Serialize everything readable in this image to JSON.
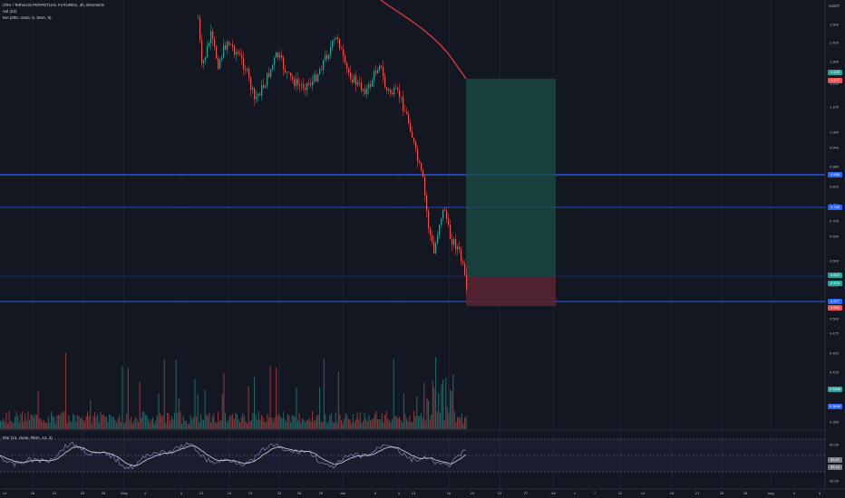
{
  "legend": {
    "title": "CRV / TetherUS PERPETUAL FUTURES, 4h, BINANCE",
    "vol": "Vol (22)",
    "ma": "MA (200, close, 0, SMA, 9)",
    "rsi": "RSI (14, close, RMA, 14, 3)"
  },
  "currency": "USDT",
  "colors": {
    "background": "#131722",
    "up": "#26a69a",
    "down": "#ef5350",
    "ma": "#e53945",
    "level": "#2962ff",
    "rsi": "#d1d4dc",
    "rsi_band": "#7e57c2"
  },
  "price_axis": {
    "ticks": [
      "1.500",
      "1.400",
      "1.300",
      "1.200",
      "1.100",
      "1.000",
      "0.940",
      "0.880",
      "0.820",
      "0.760",
      "0.700",
      "0.650",
      "0.600",
      "0.550",
      "0.500",
      "0.475",
      "0.450",
      "0.425",
      "0.400",
      "0.375",
      "0.350"
    ],
    "tags": [
      {
        "text": "1.225",
        "color": "#26a69a"
      },
      {
        "text": "1.177",
        "color": "#ef5350"
      },
      {
        "text": "0.856",
        "color": "#2962ff"
      },
      {
        "text": "0.748",
        "color": "#2962ff"
      },
      {
        "text": "0.602",
        "color": "#26a69a"
      },
      {
        "text": "0.578",
        "color": "#26a69a"
      },
      {
        "text": "0.577",
        "color": "#2962ff"
      },
      {
        "text": "0.554",
        "color": "#ef5350"
      },
      {
        "text": "0.5488",
        "color": "#26a69a"
      },
      {
        "text": "0.3698",
        "color": "#2962ff"
      }
    ]
  },
  "rsi_axis": {
    "ticks": [
      "60.00",
      "40.00",
      "30.00"
    ],
    "tags": [
      {
        "text": "33.37",
        "color": "#787b86"
      },
      {
        "text": "33.14",
        "color": "#787b86"
      }
    ]
  },
  "time_axis": {
    "labels": [
      "14",
      "18",
      "21",
      "25",
      "28",
      "May",
      "4",
      "9",
      "12",
      "16",
      "19",
      "23",
      "26",
      "29",
      "Jun",
      "6",
      "9",
      "13",
      "16",
      "20",
      "23",
      "27",
      "Jul",
      "4",
      "7",
      "11",
      "14",
      "18",
      "21",
      "25",
      "28",
      "Aug",
      "4",
      "8"
    ]
  }
}
